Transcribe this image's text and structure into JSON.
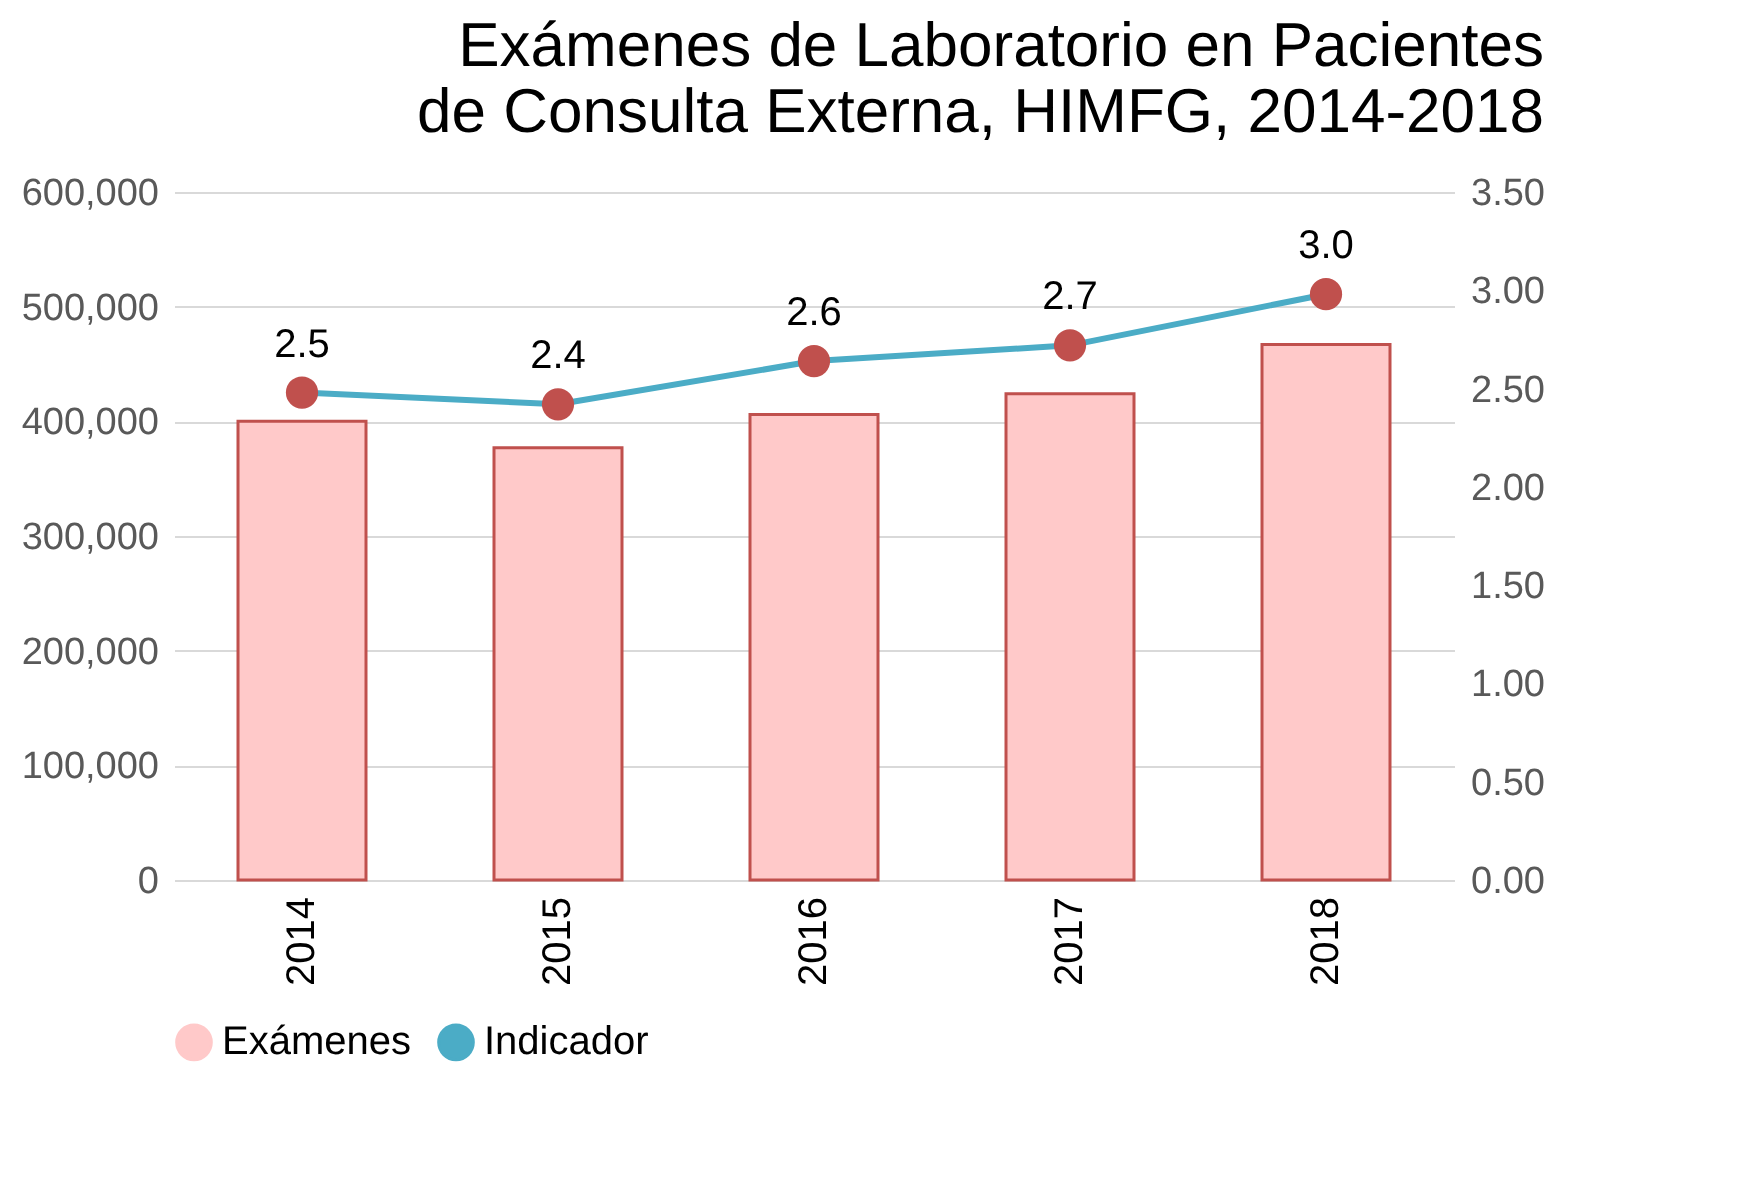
{
  "chart_data": {
    "type": "bar",
    "title": "Exámenes de Laboratorio en Pacientes de Consulta Externa, HIMFG, 2014-2018",
    "categories": [
      "2014",
      "2015",
      "2016",
      "2017",
      "2018"
    ],
    "series": [
      {
        "name": "Exámenes",
        "color": "#ffc9c9",
        "values": [
          400000,
          377000,
          406000,
          424000,
          467000
        ]
      },
      {
        "name": "Indicador",
        "type": "line",
        "axis": "y2",
        "color": "#4bacc6",
        "values": [
          2.48,
          2.42,
          2.64,
          2.72,
          2.98
        ],
        "value_labels": [
          "2.5",
          "2.4",
          "2.6",
          "2.7",
          "3.0"
        ]
      }
    ],
    "ylim": [
      0,
      600000
    ],
    "yticks": [
      {
        "value": 0,
        "label": "0"
      },
      {
        "value": 100000,
        "label": "100,000"
      },
      {
        "value": 200000,
        "label": "200,000"
      },
      {
        "value": 300000,
        "label": "300,000"
      },
      {
        "value": 400000,
        "label": "400,000"
      },
      {
        "value": 500000,
        "label": "500,000"
      },
      {
        "value": 600000,
        "label": "600,000"
      }
    ],
    "y2lim": [
      0,
      3.5
    ],
    "y2ticks": [
      {
        "value": 0,
        "label": "0.00"
      },
      {
        "value": 0.5,
        "label": "0.50"
      },
      {
        "value": 1,
        "label": "1.00"
      },
      {
        "value": 1.5,
        "label": "1.50"
      },
      {
        "value": 2,
        "label": "2.00"
      },
      {
        "value": 2.5,
        "label": "2.50"
      },
      {
        "value": 3,
        "label": "3.00"
      },
      {
        "value": 3.5,
        "label": "3.50"
      }
    ],
    "grid": "y",
    "legend": "bottom",
    "marker": "circle"
  }
}
